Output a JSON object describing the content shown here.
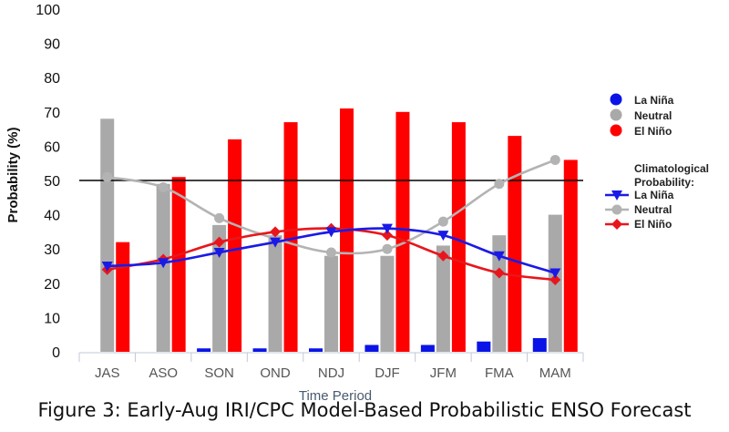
{
  "caption": "Figure 3: Early-Aug IRI/CPC Model-Based Probabilistic ENSO Forecast",
  "chart_data": {
    "type": "bar",
    "categories": [
      "JAS",
      "ASO",
      "SON",
      "OND",
      "NDJ",
      "DJF",
      "JFM",
      "FMA",
      "MAM"
    ],
    "xlabel": "Time Period",
    "ylabel": "Probability (%)",
    "ylim": [
      0,
      100
    ],
    "yticks": [
      0,
      10,
      20,
      30,
      40,
      50,
      60,
      70,
      80,
      90,
      100
    ],
    "reference_line": 50,
    "grid": false,
    "legend_position": "right",
    "bar_series": [
      {
        "name": "La Niña",
        "color": "#0a14e6",
        "values": [
          0,
          0,
          1,
          1,
          1,
          2,
          2,
          3,
          4
        ]
      },
      {
        "name": "Neutral",
        "color": "#a9a9a9",
        "values": [
          68,
          49,
          37,
          34,
          28,
          28,
          31,
          34,
          40
        ]
      },
      {
        "name": "El Niño",
        "color": "#ff0000",
        "values": [
          32,
          51,
          62,
          67,
          71,
          70,
          67,
          63,
          56
        ]
      }
    ],
    "legend_title": "Climatological\nProbability:",
    "line_series": [
      {
        "name": "La Niña",
        "color": "#1a1ae6",
        "marker": "triangle-down",
        "values": [
          25,
          26,
          29,
          32,
          35,
          36,
          34,
          28,
          23
        ]
      },
      {
        "name": "Neutral",
        "color": "#b3b3b3",
        "marker": "circle",
        "values": [
          51,
          48,
          39,
          33,
          29,
          30,
          38,
          49,
          56
        ]
      },
      {
        "name": "El Niño",
        "color": "#e8161c",
        "marker": "diamond",
        "values": [
          24,
          27,
          32,
          35,
          36,
          34,
          28,
          23,
          21
        ]
      }
    ]
  }
}
